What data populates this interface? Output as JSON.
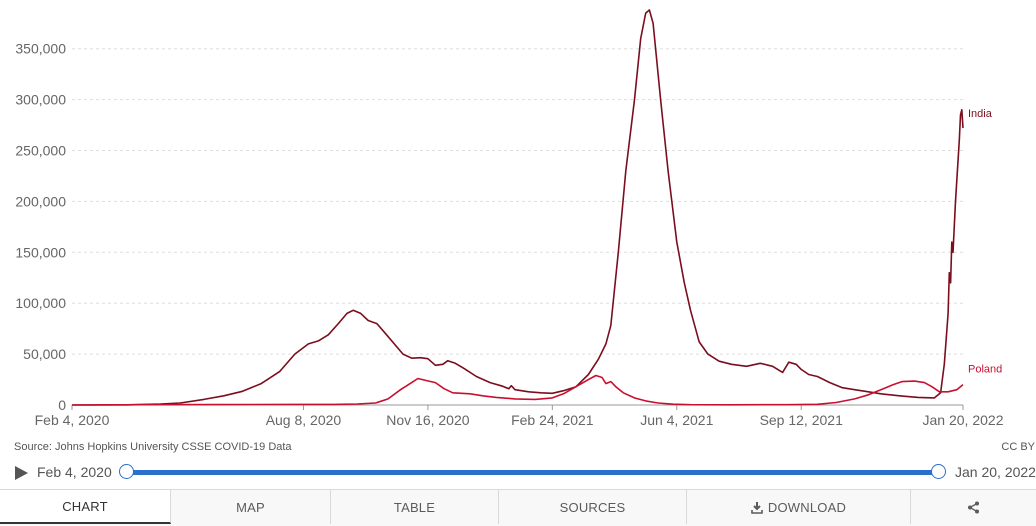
{
  "chart_data": {
    "type": "line",
    "title": "",
    "xlabel": "",
    "ylabel": "",
    "ylim": [
      0,
      390000
    ],
    "y_ticks": [
      "0",
      "50,000",
      "100,000",
      "150,000",
      "200,000",
      "250,000",
      "300,000",
      "350,000"
    ],
    "y_tick_values": [
      0,
      50000,
      100000,
      150000,
      200000,
      250000,
      300000,
      350000
    ],
    "x_ticks": [
      "Feb 4, 2020",
      "Aug 8, 2020",
      "Nov 16, 2020",
      "Feb 24, 2021",
      "Jun 4, 2021",
      "Sep 12, 2021",
      "Jan 20, 2022"
    ],
    "x_tick_dates": [
      "2020-02-04",
      "2020-08-08",
      "2020-11-16",
      "2021-02-24",
      "2021-06-04",
      "2021-09-12",
      "2022-01-20"
    ],
    "xlim": [
      "2020-02-04",
      "2022-01-20"
    ],
    "grid": true,
    "legend": "inline at line ends",
    "series": [
      {
        "name": "India",
        "color": "#7a0e1e",
        "points": [
          [
            "2020-02-04",
            0
          ],
          [
            "2020-03-20",
            200
          ],
          [
            "2020-04-15",
            900
          ],
          [
            "2020-05-01",
            2000
          ],
          [
            "2020-05-20",
            5500
          ],
          [
            "2020-06-05",
            9000
          ],
          [
            "2020-06-20",
            13500
          ],
          [
            "2020-07-05",
            21000
          ],
          [
            "2020-07-20",
            33000
          ],
          [
            "2020-08-01",
            50000
          ],
          [
            "2020-08-12",
            60000
          ],
          [
            "2020-08-20",
            63000
          ],
          [
            "2020-08-28",
            69000
          ],
          [
            "2020-09-05",
            80000
          ],
          [
            "2020-09-12",
            90000
          ],
          [
            "2020-09-17",
            93000
          ],
          [
            "2020-09-23",
            90000
          ],
          [
            "2020-09-29",
            83000
          ],
          [
            "2020-10-06",
            80000
          ],
          [
            "2020-10-13",
            70000
          ],
          [
            "2020-10-20",
            60000
          ],
          [
            "2020-10-27",
            50000
          ],
          [
            "2020-11-03",
            46000
          ],
          [
            "2020-11-10",
            46500
          ],
          [
            "2020-11-16",
            45500
          ],
          [
            "2020-11-22",
            39000
          ],
          [
            "2020-11-28",
            40000
          ],
          [
            "2020-12-02",
            43500
          ],
          [
            "2020-12-08",
            41000
          ],
          [
            "2020-12-15",
            36000
          ],
          [
            "2020-12-25",
            28000
          ],
          [
            "2021-01-05",
            22000
          ],
          [
            "2021-01-15",
            18500
          ],
          [
            "2021-01-20",
            16000
          ],
          [
            "2021-01-22",
            19000
          ],
          [
            "2021-01-25",
            15000
          ],
          [
            "2021-02-05",
            13000
          ],
          [
            "2021-02-15",
            12000
          ],
          [
            "2021-02-24",
            11500
          ],
          [
            "2021-03-05",
            14000
          ],
          [
            "2021-03-15",
            18000
          ],
          [
            "2021-03-25",
            30000
          ],
          [
            "2021-04-02",
            45000
          ],
          [
            "2021-04-08",
            60000
          ],
          [
            "2021-04-12",
            78000
          ],
          [
            "2021-04-18",
            150000
          ],
          [
            "2021-04-24",
            230000
          ],
          [
            "2021-05-01",
            300000
          ],
          [
            "2021-05-06",
            360000
          ],
          [
            "2021-05-10",
            385000
          ],
          [
            "2021-05-13",
            388000
          ],
          [
            "2021-05-16",
            375000
          ],
          [
            "2021-05-22",
            300000
          ],
          [
            "2021-05-28",
            230000
          ],
          [
            "2021-06-04",
            160000
          ],
          [
            "2021-06-10",
            120000
          ],
          [
            "2021-06-15",
            93000
          ],
          [
            "2021-06-22",
            62000
          ],
          [
            "2021-06-29",
            50000
          ],
          [
            "2021-07-08",
            43000
          ],
          [
            "2021-07-18",
            40000
          ],
          [
            "2021-07-30",
            38000
          ],
          [
            "2021-08-10",
            41000
          ],
          [
            "2021-08-20",
            38000
          ],
          [
            "2021-08-28",
            32000
          ],
          [
            "2021-09-02",
            42000
          ],
          [
            "2021-09-08",
            40000
          ],
          [
            "2021-09-12",
            35000
          ],
          [
            "2021-09-18",
            30000
          ],
          [
            "2021-09-25",
            28000
          ],
          [
            "2021-10-05",
            22000
          ],
          [
            "2021-10-15",
            17000
          ],
          [
            "2021-10-25",
            15000
          ],
          [
            "2021-11-05",
            13000
          ],
          [
            "2021-11-15",
            11000
          ],
          [
            "2021-11-30",
            9000
          ],
          [
            "2021-12-15",
            7500
          ],
          [
            "2021-12-28",
            7000
          ],
          [
            "2022-01-02",
            12000
          ],
          [
            "2022-01-05",
            40000
          ],
          [
            "2022-01-08",
            90000
          ],
          [
            "2022-01-09",
            130000
          ],
          [
            "2022-01-10",
            120000
          ],
          [
            "2022-01-11",
            160000
          ],
          [
            "2022-01-12",
            150000
          ],
          [
            "2022-01-14",
            200000
          ],
          [
            "2022-01-17",
            260000
          ],
          [
            "2022-01-18",
            285000
          ],
          [
            "2022-01-19",
            290000
          ],
          [
            "2022-01-20",
            272000
          ]
        ]
      },
      {
        "name": "Poland",
        "color": "#c8102e",
        "points": [
          [
            "2020-02-04",
            0
          ],
          [
            "2020-04-01",
            300
          ],
          [
            "2020-06-01",
            400
          ],
          [
            "2020-08-01",
            600
          ],
          [
            "2020-09-01",
            600
          ],
          [
            "2020-09-20",
            1000
          ],
          [
            "2020-10-05",
            2000
          ],
          [
            "2020-10-15",
            6000
          ],
          [
            "2020-10-25",
            15000
          ],
          [
            "2020-11-03",
            22000
          ],
          [
            "2020-11-08",
            26000
          ],
          [
            "2020-11-15",
            24000
          ],
          [
            "2020-11-22",
            22000
          ],
          [
            "2020-11-29",
            16000
          ],
          [
            "2020-12-06",
            12000
          ],
          [
            "2020-12-20",
            11000
          ],
          [
            "2020-12-30",
            9000
          ],
          [
            "2021-01-10",
            7500
          ],
          [
            "2021-01-25",
            6000
          ],
          [
            "2021-02-10",
            5500
          ],
          [
            "2021-02-24",
            7000
          ],
          [
            "2021-03-05",
            11000
          ],
          [
            "2021-03-15",
            18000
          ],
          [
            "2021-03-25",
            25000
          ],
          [
            "2021-03-31",
            29000
          ],
          [
            "2021-04-05",
            27000
          ],
          [
            "2021-04-08",
            21000
          ],
          [
            "2021-04-12",
            23000
          ],
          [
            "2021-04-16",
            18000
          ],
          [
            "2021-04-22",
            12000
          ],
          [
            "2021-05-01",
            7000
          ],
          [
            "2021-05-10",
            4000
          ],
          [
            "2021-05-20",
            2000
          ],
          [
            "2021-06-01",
            800
          ],
          [
            "2021-06-15",
            300
          ],
          [
            "2021-07-15",
            200
          ],
          [
            "2021-08-15",
            250
          ],
          [
            "2021-09-01",
            300
          ],
          [
            "2021-09-25",
            700
          ],
          [
            "2021-10-10",
            2500
          ],
          [
            "2021-10-25",
            6000
          ],
          [
            "2021-11-05",
            10000
          ],
          [
            "2021-11-15",
            15000
          ],
          [
            "2021-11-25",
            20000
          ],
          [
            "2021-12-02",
            23000
          ],
          [
            "2021-12-12",
            23500
          ],
          [
            "2021-12-20",
            22000
          ],
          [
            "2021-12-26",
            18000
          ],
          [
            "2022-01-01",
            13000
          ],
          [
            "2022-01-08",
            13000
          ],
          [
            "2022-01-15",
            15000
          ],
          [
            "2022-01-20",
            20000
          ]
        ]
      }
    ]
  },
  "source": "Source: Johns Hopkins University CSSE COVID-19 Data",
  "license": "CC BY",
  "timeline": {
    "start_label": "Feb 4, 2020",
    "end_label": "Jan 20, 2022",
    "start_value": 0,
    "end_value": 1
  },
  "tabs": [
    {
      "label": "CHART",
      "icon": "",
      "active": true
    },
    {
      "label": "MAP",
      "icon": "",
      "active": false
    },
    {
      "label": "TABLE",
      "icon": "",
      "active": false
    },
    {
      "label": "SOURCES",
      "icon": "",
      "active": false
    },
    {
      "label": "DOWNLOAD",
      "icon": "download-icon",
      "active": false
    },
    {
      "label": "",
      "icon": "share-icon",
      "active": false
    }
  ],
  "colors": {
    "accent": "#2a6fc9",
    "india": "#7a0e1e",
    "poland": "#c8102e"
  }
}
